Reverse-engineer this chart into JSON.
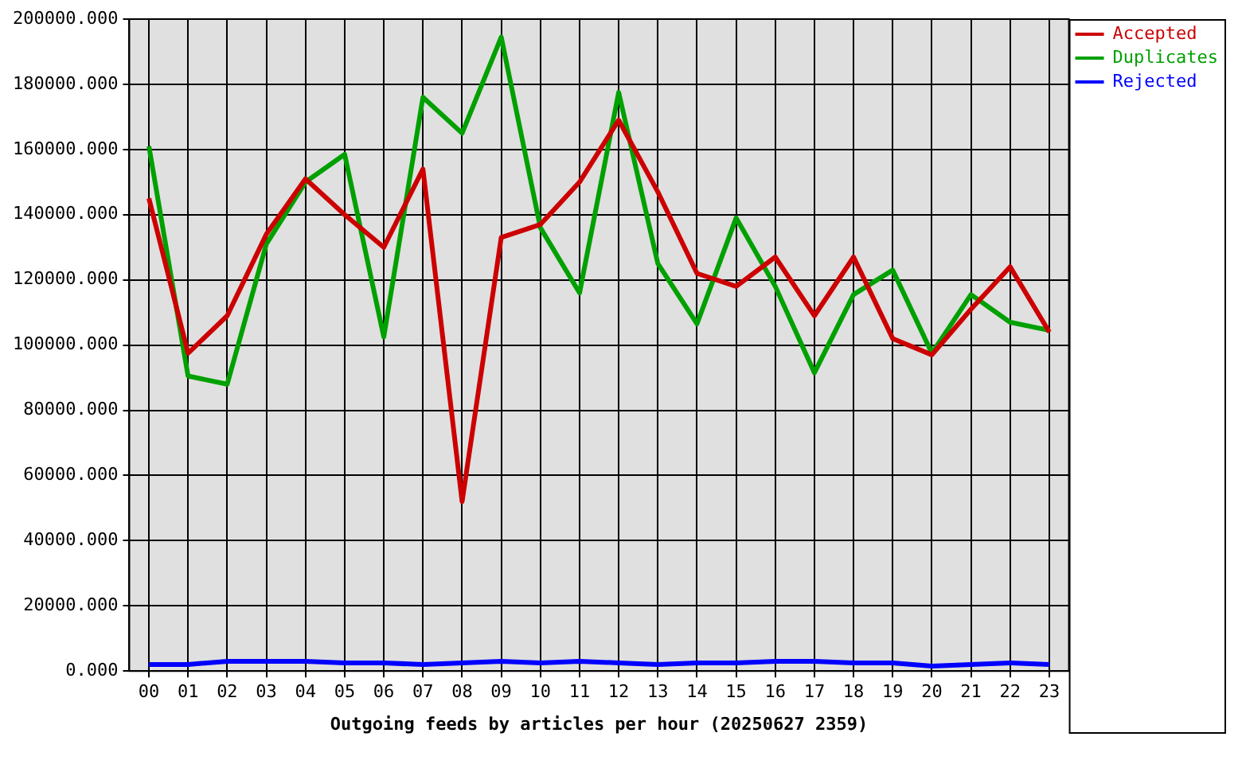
{
  "chart_data": {
    "type": "line",
    "xlabel": "Outgoing feeds by articles per hour (20250627 2359)",
    "categories": [
      "00",
      "01",
      "02",
      "03",
      "04",
      "05",
      "06",
      "07",
      "08",
      "09",
      "10",
      "11",
      "12",
      "13",
      "14",
      "15",
      "16",
      "17",
      "18",
      "19",
      "20",
      "21",
      "22",
      "23"
    ],
    "series": [
      {
        "name": "Accepted",
        "color": "#cc0000",
        "values": [
          145000,
          97500,
          109000,
          134000,
          151000,
          140000,
          130000,
          154000,
          52000,
          133000,
          137000,
          150000,
          169000,
          147000,
          122000,
          118000,
          127000,
          109000,
          127000,
          102000,
          97000,
          111000,
          124000,
          104000
        ]
      },
      {
        "name": "Duplicates",
        "color": "#00a000",
        "values": [
          161000,
          90500,
          88000,
          131000,
          150000,
          158500,
          102500,
          176000,
          165000,
          194500,
          136000,
          116000,
          177500,
          125000,
          106500,
          139000,
          118000,
          91500,
          115500,
          123000,
          97500,
          115500,
          107000,
          104500
        ]
      },
      {
        "name": "Rejected",
        "color": "#0000ff",
        "values": [
          2000,
          2000,
          3000,
          3000,
          3000,
          2500,
          2500,
          2000,
          2500,
          3000,
          2500,
          3000,
          2500,
          2000,
          2500,
          2500,
          3000,
          3000,
          2500,
          2500,
          1500,
          2000,
          2500,
          2000
        ]
      }
    ],
    "ylim": [
      0,
      200000
    ],
    "yticks": [
      {
        "value": 0,
        "label": "0.000"
      },
      {
        "value": 20000,
        "label": "20000.000"
      },
      {
        "value": 40000,
        "label": "40000.000"
      },
      {
        "value": 60000,
        "label": "60000.000"
      },
      {
        "value": 80000,
        "label": "80000.000"
      },
      {
        "value": 100000,
        "label": "100000.000"
      },
      {
        "value": 120000,
        "label": "120000.000"
      },
      {
        "value": 140000,
        "label": "140000.000"
      },
      {
        "value": 160000,
        "label": "160000.000"
      },
      {
        "value": 180000,
        "label": "180000.000"
      },
      {
        "value": 200000,
        "label": "200000.000"
      }
    ],
    "grid": true,
    "legend": "top right",
    "marker": "none",
    "line_style": "solid"
  }
}
